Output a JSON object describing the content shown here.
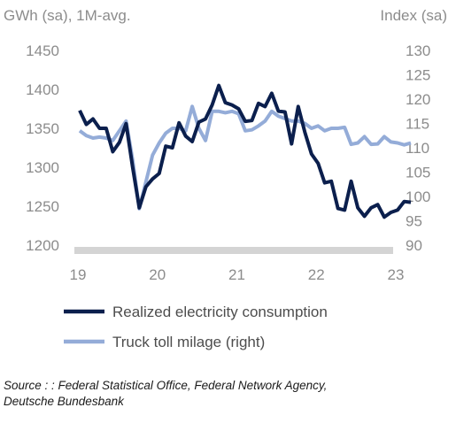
{
  "chart_data": {
    "type": "line",
    "title": "",
    "y_left_label": "GWh (sa), 1M-avg.",
    "y_right_label": "Index (sa)",
    "x_ticks": [
      "19",
      "20",
      "21",
      "22",
      "23"
    ],
    "x_range": [
      2019.0,
      2023.33
    ],
    "y_left_ticks": [
      1200,
      1250,
      1300,
      1350,
      1400,
      1450
    ],
    "y_left_range": [
      1200,
      1450
    ],
    "y_right_ticks": [
      90,
      95,
      100,
      105,
      110,
      115,
      120,
      125,
      130
    ],
    "y_right_range": [
      90,
      130
    ],
    "grid": false,
    "legend_position": "bottom",
    "x_axis_color": "#d4d4d4",
    "series": [
      {
        "name": "Realized electricity consumption",
        "axis": "left",
        "color": "#0b1f4d",
        "x": [
          2019.0,
          2019.0833,
          2019.1667,
          2019.25,
          2019.3333,
          2019.4167,
          2019.5,
          2019.5833,
          2019.6667,
          2019.75,
          2019.8333,
          2019.9167,
          2020.0,
          2020.0833,
          2020.1667,
          2020.25,
          2020.3333,
          2020.4167,
          2020.5,
          2020.5833,
          2020.6667,
          2020.75,
          2020.8333,
          2020.9167,
          2021.0,
          2021.0833,
          2021.1667,
          2021.25,
          2021.3333,
          2021.4167,
          2021.5,
          2021.5833,
          2021.6667,
          2021.75,
          2021.8333,
          2021.9167,
          2022.0,
          2022.0833,
          2022.1667,
          2022.25,
          2022.3333,
          2022.4167,
          2022.5,
          2022.5833,
          2022.6667,
          2022.75,
          2022.8333,
          2022.9167,
          2023.0,
          2023.0833,
          2023.1667
        ],
        "values": [
          1373,
          1355,
          1362,
          1350,
          1350,
          1320,
          1332,
          1356,
          1300,
          1248,
          1275,
          1285,
          1292,
          1327,
          1325,
          1357,
          1340,
          1333,
          1358,
          1362,
          1380,
          1405,
          1383,
          1380,
          1375,
          1359,
          1360,
          1382,
          1378,
          1395,
          1372,
          1371,
          1330,
          1378,
          1345,
          1317,
          1305,
          1280,
          1282,
          1247,
          1245,
          1282,
          1248,
          1237,
          1248,
          1252,
          1236,
          1242,
          1245,
          1256,
          1255
        ]
      },
      {
        "name": "Truck toll milage (right)",
        "axis": "right",
        "color": "#94acd8",
        "x": [
          2019.0,
          2019.0833,
          2019.1667,
          2019.25,
          2019.3333,
          2019.4167,
          2019.5,
          2019.5833,
          2019.6667,
          2019.75,
          2019.8333,
          2019.9167,
          2020.0,
          2020.0833,
          2020.1667,
          2020.25,
          2020.3333,
          2020.4167,
          2020.5,
          2020.5833,
          2020.6667,
          2020.75,
          2020.8333,
          2020.9167,
          2021.0,
          2021.0833,
          2021.1667,
          2021.25,
          2021.3333,
          2021.4167,
          2021.5,
          2021.5833,
          2021.6667,
          2021.75,
          2021.8333,
          2021.9167,
          2022.0,
          2022.0833,
          2022.1667,
          2022.25,
          2022.3333,
          2022.4167,
          2022.5,
          2022.5833,
          2022.6667,
          2022.75,
          2022.8333,
          2022.9167,
          2023.0,
          2023.0833,
          2023.1667
        ],
        "values": [
          113.5,
          112.5,
          112.0,
          112.2,
          112.0,
          111.5,
          113.5,
          115.5,
          107.5,
          97.5,
          103.0,
          108.5,
          111.0,
          113.0,
          114.0,
          114.0,
          113.5,
          118.5,
          114.0,
          111.5,
          117.5,
          117.5,
          117.2,
          117.5,
          117.0,
          113.5,
          113.7,
          114.5,
          115.5,
          117.5,
          116.5,
          116.0,
          115.5,
          115.5,
          115.0,
          114.0,
          114.5,
          113.5,
          114.0,
          114.0,
          114.2,
          110.7,
          111.0,
          112.3,
          110.7,
          110.8,
          112.3,
          111.2,
          111.0,
          110.6,
          111.0
        ]
      }
    ]
  },
  "source_lines": [
    "Source : : Federal Statistical Office, Federal Network Agency,",
    "Deutsche Bundesbank"
  ]
}
